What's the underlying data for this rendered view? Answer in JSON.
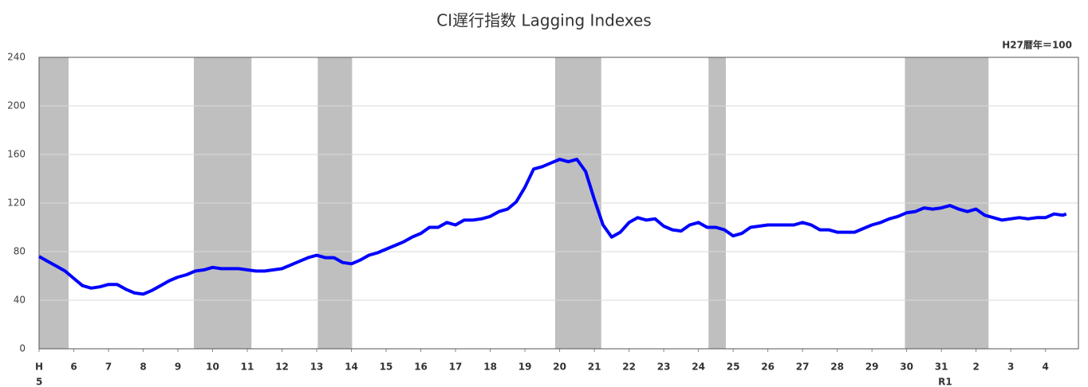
{
  "chart_data": {
    "type": "line",
    "title": "CI遅行指数 Lagging Indexes",
    "unit_note": "H27暦年＝100",
    "color": "#0000ff",
    "shade_color": "#bfbfbf",
    "grid": true,
    "shaded_periods": [
      [
        5,
        5.85
      ],
      [
        9.46,
        11.12
      ],
      [
        13.03,
        14.02
      ],
      [
        19.87,
        21.2
      ],
      [
        24.29,
        24.79
      ],
      [
        29.95,
        32.36
      ]
    ],
    "x": [
      5,
      5.25,
      5.5,
      5.75,
      6,
      6.25,
      6.5,
      6.75,
      7,
      7.25,
      7.5,
      7.75,
      8,
      8.25,
      8.5,
      8.75,
      9,
      9.25,
      9.5,
      9.75,
      10,
      10.25,
      10.5,
      10.75,
      11,
      11.25,
      11.5,
      11.75,
      12,
      12.25,
      12.5,
      12.75,
      13,
      13.25,
      13.5,
      13.75,
      14,
      14.25,
      14.5,
      14.75,
      15,
      15.25,
      15.5,
      15.75,
      16,
      16.25,
      16.5,
      16.75,
      17,
      17.25,
      17.5,
      17.75,
      18,
      18.25,
      18.5,
      18.75,
      19,
      19.25,
      19.5,
      19.75,
      20,
      20.25,
      20.5,
      20.75,
      21,
      21.25,
      21.5,
      21.75,
      22,
      22.25,
      22.5,
      22.75,
      23,
      23.25,
      23.5,
      23.75,
      24,
      24.25,
      24.5,
      24.75,
      25,
      25.25,
      25.5,
      25.75,
      26,
      26.25,
      26.5,
      26.75,
      27,
      27.25,
      27.5,
      27.75,
      28,
      28.25,
      28.5,
      28.75,
      29,
      29.25,
      29.5,
      29.75,
      30,
      30.25,
      30.5,
      30.75,
      31,
      31.25,
      31.5,
      31.75,
      32,
      32.25,
      32.5,
      32.75,
      33,
      33.25,
      33.5,
      33.75,
      34,
      34.25,
      34.5,
      34.6
    ],
    "values": [
      76,
      72,
      68,
      64,
      58,
      52,
      50,
      51,
      53,
      53,
      49,
      46,
      45,
      48,
      52,
      56,
      59,
      61,
      64,
      65,
      67,
      66,
      66,
      66,
      65,
      64,
      64,
      65,
      66,
      69,
      72,
      75,
      77,
      75,
      75,
      71,
      70,
      73,
      77,
      79,
      82,
      85,
      88,
      92,
      95,
      100,
      100,
      104,
      102,
      106,
      106,
      107,
      109,
      113,
      115,
      121,
      133,
      148,
      150,
      153,
      156,
      154,
      156,
      146,
      123,
      102,
      92,
      96,
      104,
      108,
      106,
      107,
      101,
      98,
      97,
      102,
      104,
      100,
      100,
      98,
      93,
      95,
      100,
      101,
      102,
      102,
      102,
      102,
      104,
      102,
      98,
      98,
      96,
      96,
      96,
      99,
      102,
      104,
      107,
      109,
      112,
      113,
      116,
      115,
      116,
      118,
      115,
      113,
      115,
      110,
      108,
      106,
      107,
      108,
      107,
      108,
      108,
      111,
      110,
      111
    ],
    "xlim": [
      5,
      34.95
    ],
    "ylim": [
      0,
      240
    ],
    "yticks": [
      0,
      40,
      80,
      120,
      160,
      200,
      240
    ],
    "xticks": [
      {
        "value": 5,
        "label": [
          "H",
          "5"
        ]
      },
      6,
      7,
      8,
      9,
      10,
      11,
      12,
      13,
      14,
      15,
      16,
      17,
      18,
      19,
      20,
      21,
      22,
      23,
      24,
      25,
      26,
      27,
      28,
      29,
      30,
      {
        "value": 31,
        "label": [
          "31",
          "R1"
        ]
      },
      {
        "value": 32,
        "label": "2"
      },
      {
        "value": 33,
        "label": "3"
      },
      {
        "value": 34,
        "label": "4"
      }
    ]
  }
}
